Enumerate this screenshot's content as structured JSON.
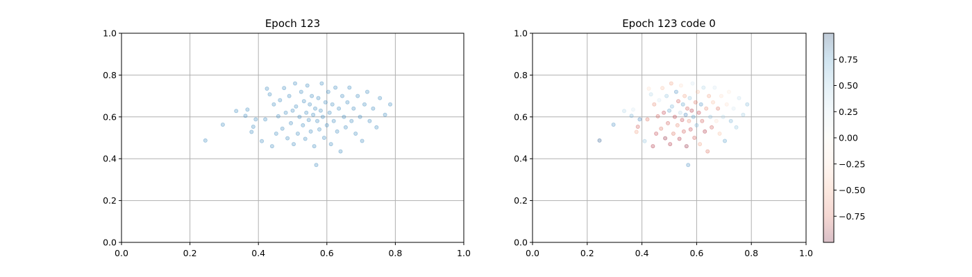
{
  "chart_data": [
    {
      "type": "scatter",
      "title": "Epoch 123",
      "xlim": [
        0,
        1
      ],
      "ylim": [
        0,
        1
      ],
      "xticks": [
        "0.0",
        "0.2",
        "0.4",
        "0.6",
        "0.8",
        "1.0"
      ],
      "yticks": [
        "0.0",
        "0.2",
        "0.4",
        "0.6",
        "0.8",
        "1.0"
      ],
      "grid": true,
      "marker_color": "#1f77b4",
      "points": [
        [
          0.245,
          0.487
        ],
        [
          0.296,
          0.563
        ],
        [
          0.335,
          0.628
        ],
        [
          0.362,
          0.605
        ],
        [
          0.368,
          0.635
        ],
        [
          0.38,
          0.528
        ],
        [
          0.385,
          0.553
        ],
        [
          0.392,
          0.588
        ],
        [
          0.41,
          0.484
        ],
        [
          0.42,
          0.588
        ],
        [
          0.425,
          0.735
        ],
        [
          0.433,
          0.708
        ],
        [
          0.44,
          0.46
        ],
        [
          0.445,
          0.66
        ],
        [
          0.452,
          0.52
        ],
        [
          0.458,
          0.603
        ],
        [
          0.463,
          0.68
        ],
        [
          0.47,
          0.544
        ],
        [
          0.475,
          0.738
        ],
        [
          0.48,
          0.62
        ],
        [
          0.485,
          0.498
        ],
        [
          0.49,
          0.7
        ],
        [
          0.495,
          0.57
        ],
        [
          0.5,
          0.63
        ],
        [
          0.503,
          0.47
        ],
        [
          0.507,
          0.76
        ],
        [
          0.51,
          0.65
        ],
        [
          0.515,
          0.52
        ],
        [
          0.52,
          0.6
        ],
        [
          0.525,
          0.72
        ],
        [
          0.53,
          0.56
        ],
        [
          0.533,
          0.675
        ],
        [
          0.537,
          0.495
        ],
        [
          0.54,
          0.62
        ],
        [
          0.543,
          0.75
        ],
        [
          0.547,
          0.585
        ],
        [
          0.55,
          0.66
        ],
        [
          0.553,
          0.53
        ],
        [
          0.556,
          0.7
        ],
        [
          0.56,
          0.61
        ],
        [
          0.563,
          0.46
        ],
        [
          0.566,
          0.64
        ],
        [
          0.569,
          0.37
        ],
        [
          0.572,
          0.58
        ],
        [
          0.575,
          0.69
        ],
        [
          0.578,
          0.54
        ],
        [
          0.582,
          0.63
        ],
        [
          0.585,
          0.76
        ],
        [
          0.588,
          0.6
        ],
        [
          0.592,
          0.5
        ],
        [
          0.596,
          0.67
        ],
        [
          0.6,
          0.56
        ],
        [
          0.604,
          0.72
        ],
        [
          0.608,
          0.62
        ],
        [
          0.612,
          0.47
        ],
        [
          0.616,
          0.66
        ],
        [
          0.62,
          0.58
        ],
        [
          0.625,
          0.74
        ],
        [
          0.63,
          0.53
        ],
        [
          0.635,
          0.64
        ],
        [
          0.64,
          0.435
        ],
        [
          0.645,
          0.7
        ],
        [
          0.65,
          0.6
        ],
        [
          0.655,
          0.55
        ],
        [
          0.66,
          0.67
        ],
        [
          0.666,
          0.74
        ],
        [
          0.672,
          0.58
        ],
        [
          0.678,
          0.64
        ],
        [
          0.684,
          0.52
        ],
        [
          0.69,
          0.7
        ],
        [
          0.697,
          0.6
        ],
        [
          0.703,
          0.485
        ],
        [
          0.71,
          0.66
        ],
        [
          0.718,
          0.72
        ],
        [
          0.725,
          0.58
        ],
        [
          0.735,
          0.64
        ],
        [
          0.745,
          0.55
        ],
        [
          0.755,
          0.69
        ],
        [
          0.77,
          0.61
        ],
        [
          0.785,
          0.66
        ]
      ]
    },
    {
      "type": "scatter",
      "title": "Epoch 123 code 0",
      "xlim": [
        0,
        1
      ],
      "ylim": [
        0,
        1
      ],
      "xticks": [
        "0.0",
        "0.2",
        "0.4",
        "0.6",
        "0.8",
        "1.0"
      ],
      "yticks": [
        "0.0",
        "0.2",
        "0.4",
        "0.6",
        "0.8",
        "1.0"
      ],
      "grid": true,
      "colormap": "RdBu",
      "colorbar_ticks": [
        "0.75",
        "0.50",
        "0.25",
        "0.00",
        "−0.25",
        "−0.50",
        "−0.75"
      ],
      "colorbar_tick_values": [
        0.75,
        0.5,
        0.25,
        0.0,
        -0.25,
        -0.5,
        -0.75
      ],
      "colorbar_range": [
        -1,
        1
      ],
      "points": [
        [
          0.245,
          0.487,
          0.9
        ],
        [
          0.296,
          0.563,
          0.6
        ],
        [
          0.335,
          0.628,
          0.2
        ],
        [
          0.362,
          0.605,
          0.4
        ],
        [
          0.368,
          0.635,
          0.1
        ],
        [
          0.38,
          0.528,
          -0.3
        ],
        [
          0.385,
          0.553,
          -0.6
        ],
        [
          0.392,
          0.588,
          0.7
        ],
        [
          0.41,
          0.484,
          0.3
        ],
        [
          0.42,
          0.588,
          -0.5
        ],
        [
          0.425,
          0.735,
          -0.1
        ],
        [
          0.433,
          0.708,
          0.2
        ],
        [
          0.44,
          0.46,
          -0.8
        ],
        [
          0.445,
          0.66,
          -0.4
        ],
        [
          0.452,
          0.52,
          -0.7
        ],
        [
          0.458,
          0.603,
          -0.6
        ],
        [
          0.463,
          0.68,
          0.1
        ],
        [
          0.47,
          0.544,
          -0.5
        ],
        [
          0.475,
          0.738,
          -0.2
        ],
        [
          0.48,
          0.62,
          -0.7
        ],
        [
          0.485,
          0.498,
          -0.9
        ],
        [
          0.49,
          0.7,
          0.3
        ],
        [
          0.495,
          0.57,
          -0.6
        ],
        [
          0.5,
          0.63,
          0.5
        ],
        [
          0.503,
          0.47,
          -0.8
        ],
        [
          0.507,
          0.76,
          -0.3
        ],
        [
          0.51,
          0.65,
          0.4
        ],
        [
          0.515,
          0.52,
          -0.5
        ],
        [
          0.52,
          0.6,
          -0.7
        ],
        [
          0.525,
          0.72,
          0.6
        ],
        [
          0.53,
          0.56,
          -0.4
        ],
        [
          0.533,
          0.675,
          -0.6
        ],
        [
          0.537,
          0.495,
          -0.8
        ],
        [
          0.54,
          0.62,
          0.2
        ],
        [
          0.543,
          0.75,
          -0.1
        ],
        [
          0.547,
          0.585,
          -0.7
        ],
        [
          0.55,
          0.66,
          0.5
        ],
        [
          0.553,
          0.53,
          -0.6
        ],
        [
          0.556,
          0.7,
          -0.3
        ],
        [
          0.56,
          0.61,
          0.7
        ],
        [
          0.563,
          0.46,
          -0.9
        ],
        [
          0.566,
          0.64,
          -0.6
        ],
        [
          0.569,
          0.37,
          0.6
        ],
        [
          0.572,
          0.58,
          -0.4
        ],
        [
          0.575,
          0.69,
          0.3
        ],
        [
          0.578,
          0.54,
          -0.7
        ],
        [
          0.582,
          0.63,
          -0.8
        ],
        [
          0.585,
          0.76,
          0.1
        ],
        [
          0.588,
          0.6,
          0.5
        ],
        [
          0.592,
          0.5,
          -0.6
        ],
        [
          0.596,
          0.67,
          -0.5
        ],
        [
          0.6,
          0.56,
          0.4
        ],
        [
          0.604,
          0.72,
          -0.2
        ],
        [
          0.608,
          0.62,
          -0.7
        ],
        [
          0.612,
          0.47,
          -0.3
        ],
        [
          0.616,
          0.66,
          0.6
        ],
        [
          0.62,
          0.58,
          -0.6
        ],
        [
          0.625,
          0.74,
          0.2
        ],
        [
          0.63,
          0.53,
          -0.8
        ],
        [
          0.635,
          0.64,
          -0.4
        ],
        [
          0.64,
          0.435,
          -0.5
        ],
        [
          0.645,
          0.7,
          -0.3
        ],
        [
          0.65,
          0.6,
          0.3
        ],
        [
          0.655,
          0.55,
          -0.6
        ],
        [
          0.66,
          0.67,
          -0.2
        ],
        [
          0.666,
          0.74,
          0.1
        ],
        [
          0.672,
          0.58,
          -0.1
        ],
        [
          0.678,
          0.64,
          -0.5
        ],
        [
          0.684,
          0.52,
          -0.2
        ],
        [
          0.69,
          0.7,
          -0.1
        ],
        [
          0.697,
          0.6,
          0.2
        ],
        [
          0.703,
          0.485,
          0.5
        ],
        [
          0.71,
          0.66,
          -0.1
        ],
        [
          0.718,
          0.72,
          -0.05
        ],
        [
          0.725,
          0.58,
          0.4
        ],
        [
          0.735,
          0.64,
          0.1
        ],
        [
          0.745,
          0.55,
          0.3
        ],
        [
          0.755,
          0.69,
          0.15
        ],
        [
          0.77,
          0.61,
          0.25
        ],
        [
          0.785,
          0.66,
          0.35
        ]
      ]
    }
  ]
}
